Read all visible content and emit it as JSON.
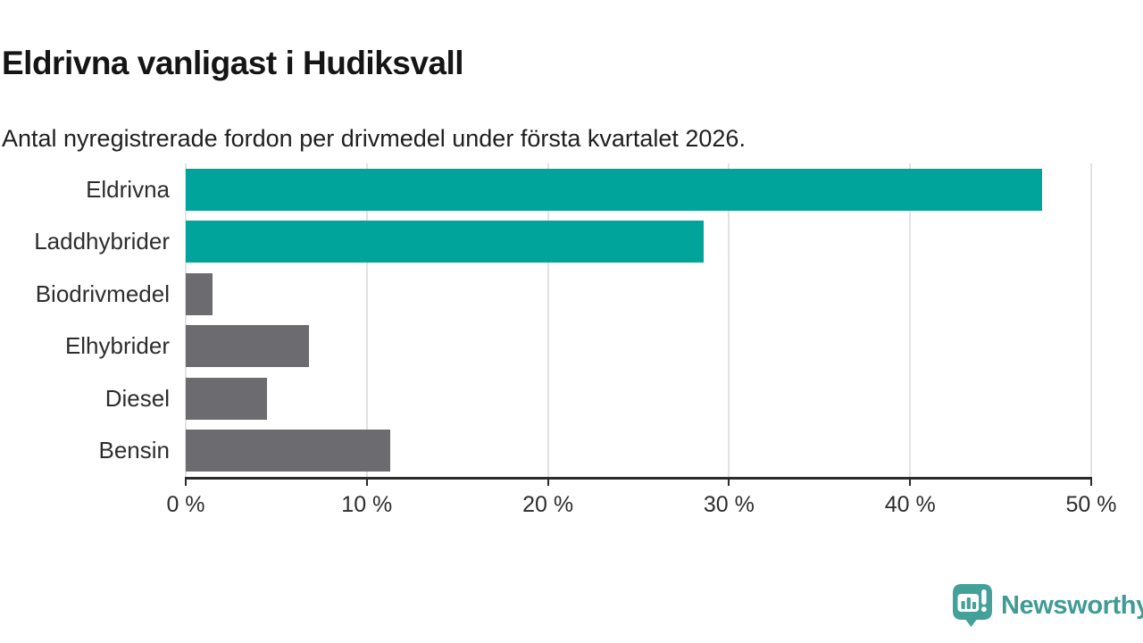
{
  "chart_data": {
    "type": "bar",
    "orientation": "horizontal",
    "title": "Eldrivna vanligast i Hudiksvall",
    "subtitle": "Antal nyregistrerade fordon per drivmedel under första kvartalet 2026.",
    "categories": [
      "Eldrivna",
      "Laddhybrider",
      "Biodrivmedel",
      "Elhybrider",
      "Diesel",
      "Bensin"
    ],
    "values": [
      47.3,
      28.6,
      1.5,
      6.8,
      4.5,
      11.3
    ],
    "unit": "%",
    "xlabel": "",
    "ylabel": "",
    "xlim": [
      0,
      50
    ],
    "x_ticks": [
      0,
      10,
      20,
      30,
      40,
      50
    ],
    "x_tick_labels": [
      "0 %",
      "10 %",
      "20 %",
      "30 %",
      "40 %",
      "50 %"
    ],
    "bar_colors": [
      "#00a49b",
      "#00a49b",
      "#6b6b70",
      "#6b6b70",
      "#6b6b70",
      "#6b6b70"
    ],
    "colors": {
      "highlight": "#00a49b",
      "default": "#6b6b70",
      "gridline": "#e2e2e2",
      "axis": "#2b2b2b",
      "title_text": "#151515",
      "label_text": "#2d2d2d"
    },
    "grid": true,
    "legend": false
  },
  "branding": {
    "logo_text": "Newsworthy",
    "logo_icon": "newsworthy-speech-bubble-bar-chart-icon",
    "logo_color": "#3f9b94",
    "logo_bubble_color": "#44a19a"
  }
}
